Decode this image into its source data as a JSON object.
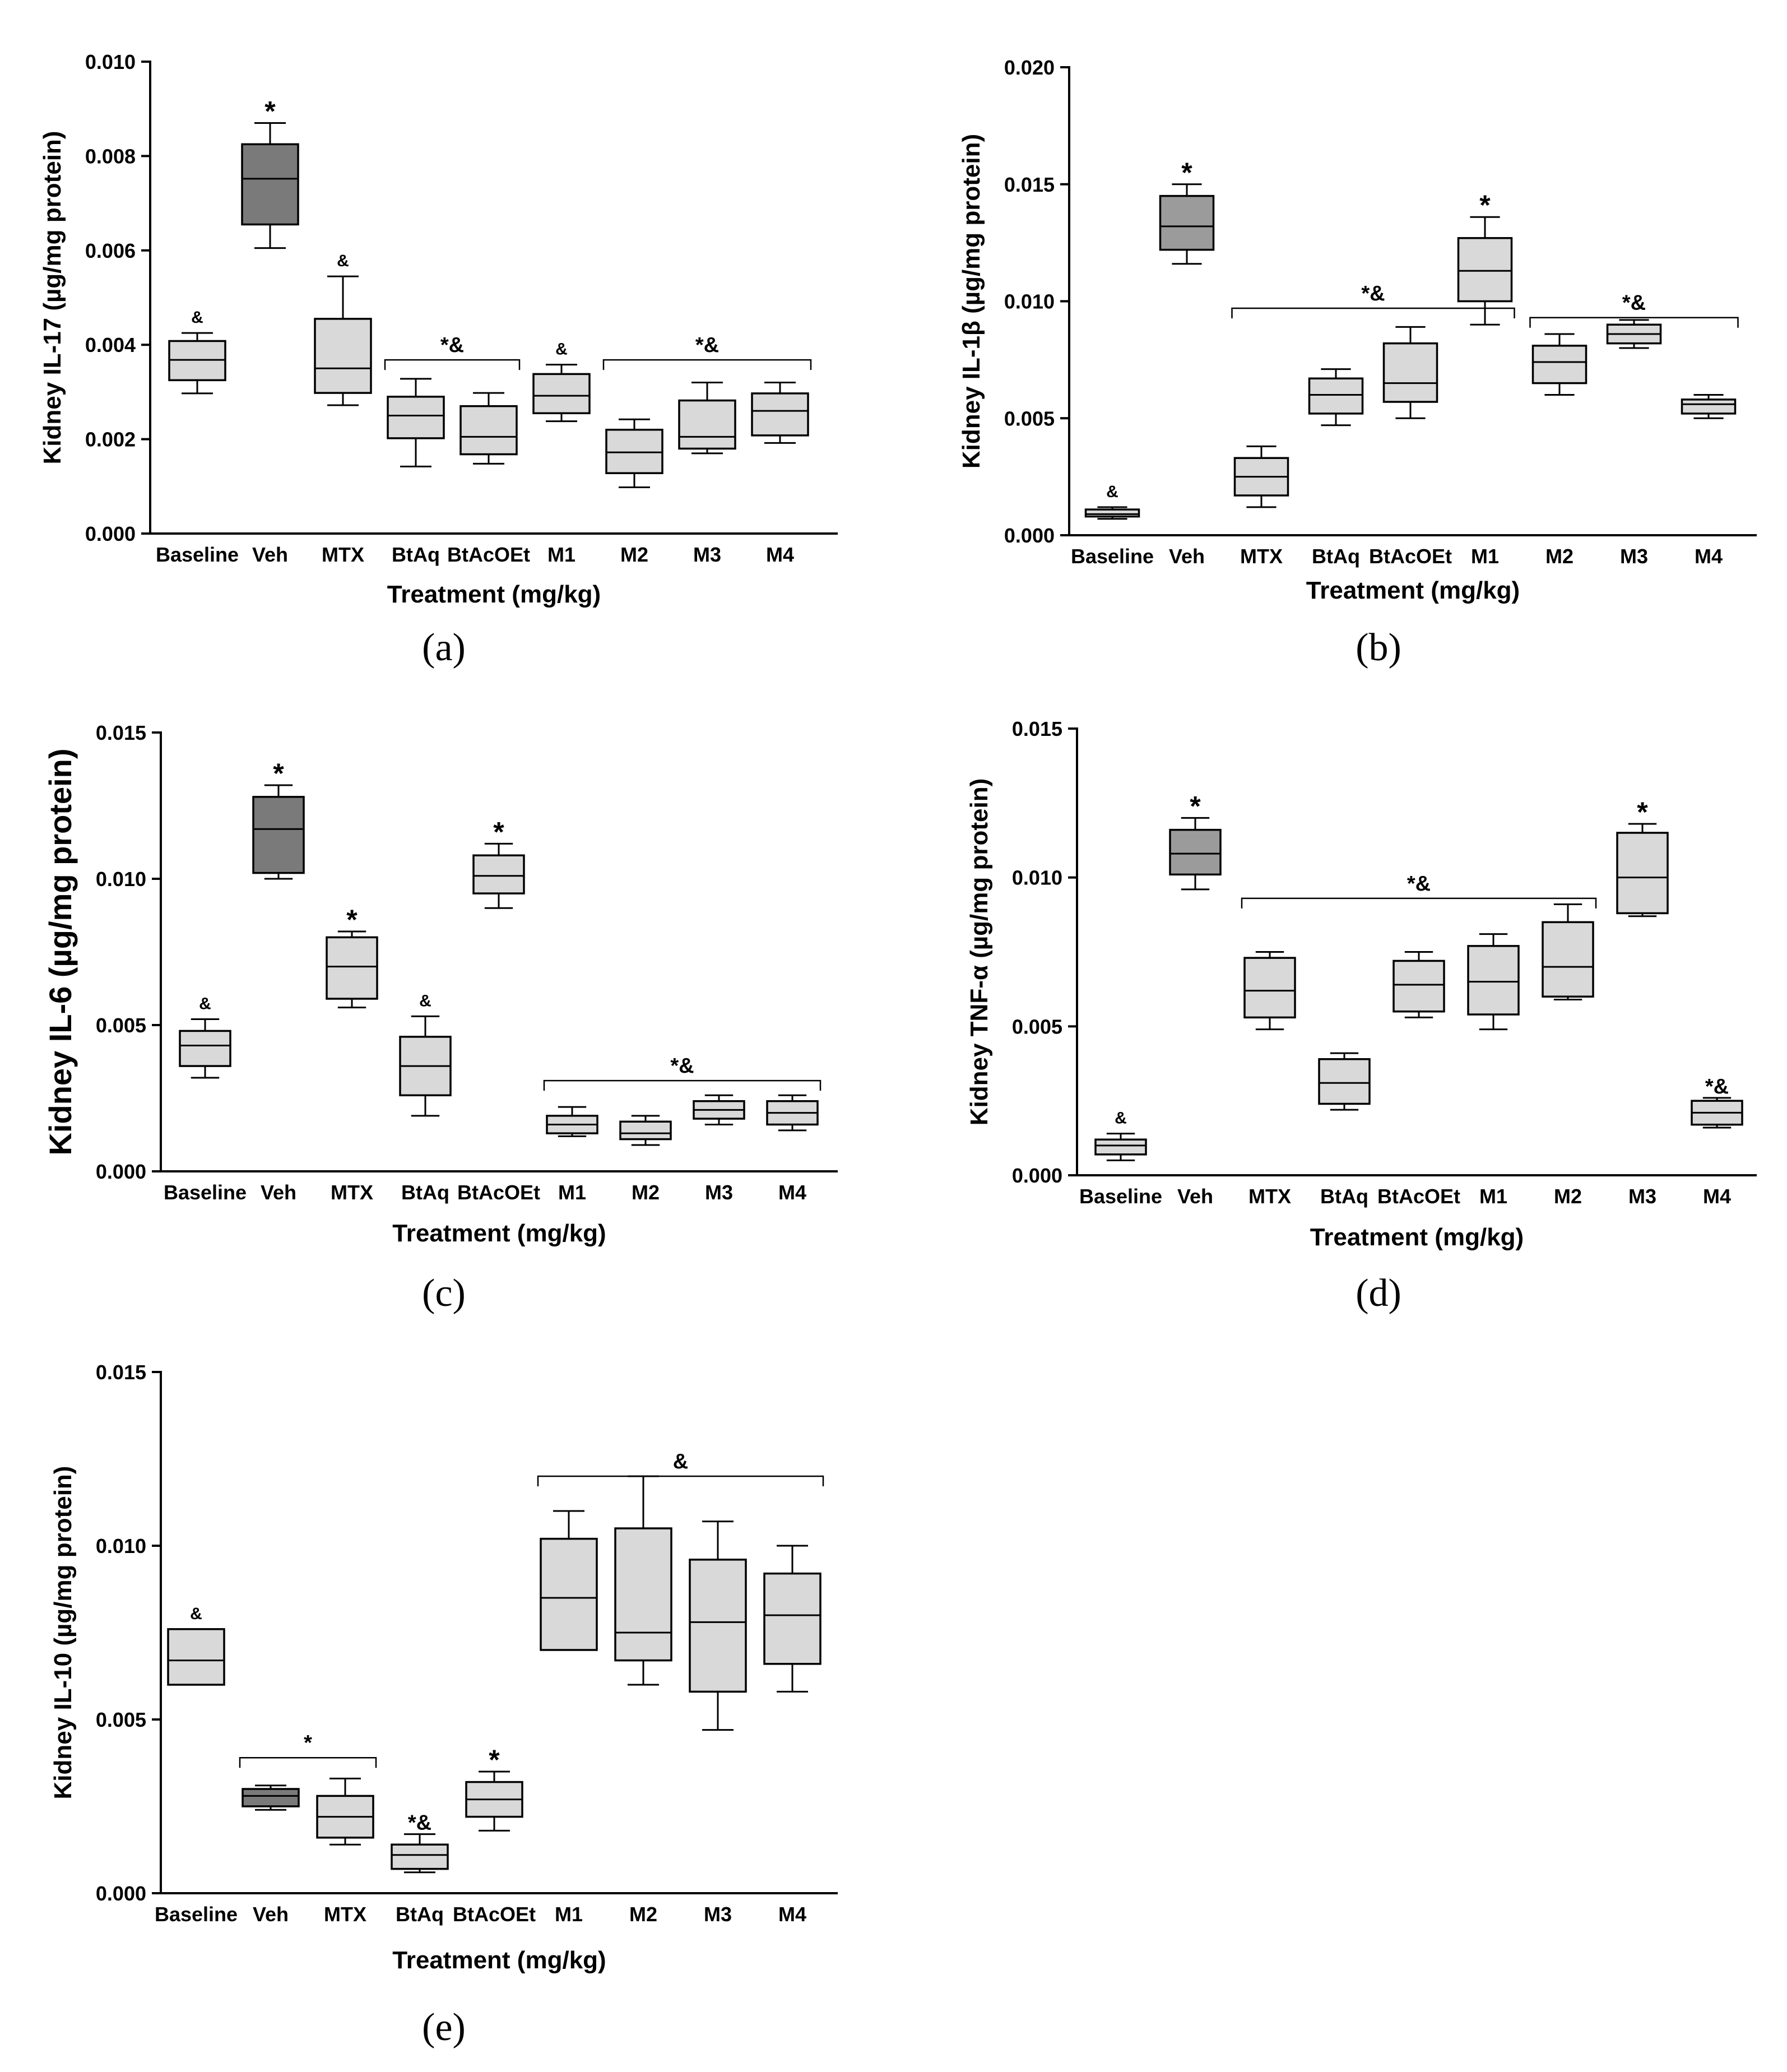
{
  "colors": {
    "dark_box": "#7a7a7a",
    "mid_box": "#9b9b9b",
    "light_box": "#d9d9d9",
    "stroke": "#000000"
  },
  "x_title": "Treatment (mg/kg)",
  "chart_data": [
    {
      "type": "box",
      "panel_label": "(a)",
      "ylabel": "Kidney IL-17 (µg/mg protein)",
      "ylim": [
        0,
        0.01
      ],
      "yticks": [
        "0.000",
        "0.002",
        "0.004",
        "0.006",
        "0.008",
        "0.010"
      ],
      "categories": [
        "Baseline",
        "Veh",
        "MTX",
        "BtAq",
        "BtAcOEt",
        "M1",
        "M2",
        "M3",
        "M4"
      ],
      "boxes": [
        {
          "group": "Baseline",
          "min": 0.00297,
          "q1": 0.00325,
          "median": 0.00368,
          "q3": 0.00408,
          "max": 0.00425,
          "fill": "light_box",
          "marker": "&"
        },
        {
          "group": "Veh",
          "min": 0.00605,
          "q1": 0.00655,
          "median": 0.00752,
          "q3": 0.00825,
          "max": 0.0087,
          "fill": "dark_box",
          "marker": "*"
        },
        {
          "group": "MTX",
          "min": 0.00272,
          "q1": 0.00298,
          "median": 0.0035,
          "q3": 0.00455,
          "max": 0.00545,
          "fill": "light_box",
          "marker": "&"
        },
        {
          "group": "BtAq",
          "min": 0.00142,
          "q1": 0.00202,
          "median": 0.0025,
          "q3": 0.0029,
          "max": 0.00328,
          "fill": "light_box"
        },
        {
          "group": "BtAcOEt",
          "min": 0.00148,
          "q1": 0.00168,
          "median": 0.00205,
          "q3": 0.0027,
          "max": 0.00298,
          "fill": "light_box"
        },
        {
          "group": "M1",
          "min": 0.00238,
          "q1": 0.00255,
          "median": 0.00292,
          "q3": 0.00338,
          "max": 0.00358,
          "fill": "light_box",
          "marker": "&"
        },
        {
          "group": "M2",
          "min": 0.00098,
          "q1": 0.00128,
          "median": 0.00172,
          "q3": 0.0022,
          "max": 0.00242,
          "fill": "light_box"
        },
        {
          "group": "M3",
          "min": 0.0017,
          "q1": 0.0018,
          "median": 0.00205,
          "q3": 0.00282,
          "max": 0.0032,
          "fill": "light_box"
        },
        {
          "group": "M4",
          "min": 0.00192,
          "q1": 0.00208,
          "median": 0.0026,
          "q3": 0.00297,
          "max": 0.0032,
          "fill": "light_box"
        }
      ],
      "brackets": [
        {
          "from": "BtAq",
          "to": "BtAcOEt",
          "y": 0.00368,
          "label": "*&"
        },
        {
          "from": "M2",
          "to": "M4",
          "y": 0.00368,
          "label": "*&"
        }
      ]
    },
    {
      "type": "box",
      "panel_label": "(b)",
      "ylabel": "Kidney IL-1β (µg/mg protein)",
      "ylim": [
        0,
        0.02
      ],
      "yticks": [
        "0.000",
        "0.005",
        "0.010",
        "0.015",
        "0.020"
      ],
      "categories": [
        "Baseline",
        "Veh",
        "MTX",
        "BtAq",
        "BtAcOEt",
        "M1",
        "M2",
        "M3",
        "M4"
      ],
      "boxes": [
        {
          "group": "Baseline",
          "min": 0.0007,
          "q1": 0.0008,
          "median": 0.0009,
          "q3": 0.0011,
          "max": 0.0012,
          "fill": "light_box",
          "marker": "&"
        },
        {
          "group": "Veh",
          "min": 0.0116,
          "q1": 0.0122,
          "median": 0.0132,
          "q3": 0.0145,
          "max": 0.015,
          "fill": "mid_box",
          "marker": "*"
        },
        {
          "group": "MTX",
          "min": 0.0012,
          "q1": 0.0017,
          "median": 0.0025,
          "q3": 0.0033,
          "max": 0.0038,
          "fill": "light_box"
        },
        {
          "group": "BtAq",
          "min": 0.0047,
          "q1": 0.0052,
          "median": 0.006,
          "q3": 0.0067,
          "max": 0.0071,
          "fill": "light_box"
        },
        {
          "group": "BtAcOEt",
          "min": 0.005,
          "q1": 0.0057,
          "median": 0.0065,
          "q3": 0.0082,
          "max": 0.0089,
          "fill": "light_box"
        },
        {
          "group": "M1",
          "min": 0.009,
          "q1": 0.01,
          "median": 0.0113,
          "q3": 0.0127,
          "max": 0.0136,
          "fill": "light_box",
          "marker": "*"
        },
        {
          "group": "M2",
          "min": 0.006,
          "q1": 0.0065,
          "median": 0.0074,
          "q3": 0.0081,
          "max": 0.0086,
          "fill": "light_box"
        },
        {
          "group": "M3",
          "min": 0.008,
          "q1": 0.0082,
          "median": 0.0086,
          "q3": 0.009,
          "max": 0.0092,
          "fill": "light_box"
        },
        {
          "group": "M4",
          "min": 0.005,
          "q1": 0.0052,
          "median": 0.0056,
          "q3": 0.0058,
          "max": 0.006,
          "fill": "light_box"
        }
      ],
      "brackets": [
        {
          "from": "MTX",
          "to": "M1",
          "y": 0.0097,
          "label": "*&"
        },
        {
          "from": "M2",
          "to": "M4",
          "y": 0.0093,
          "label": "*&"
        }
      ]
    },
    {
      "type": "box",
      "panel_label": "(c)",
      "ylabel": "Kidney IL-6 (µg/mg protein)",
      "ylim": [
        0,
        0.015
      ],
      "yticks": [
        "0.000",
        "0.005",
        "0.010",
        "0.015"
      ],
      "categories": [
        "Baseline",
        "Veh",
        "MTX",
        "BtAq",
        "BtAcOEt",
        "M1",
        "M2",
        "M3",
        "M4"
      ],
      "boxes": [
        {
          "group": "Baseline",
          "min": 0.0032,
          "q1": 0.0036,
          "median": 0.0043,
          "q3": 0.0048,
          "max": 0.0052,
          "fill": "light_box",
          "marker": "&"
        },
        {
          "group": "Veh",
          "min": 0.01,
          "q1": 0.0102,
          "median": 0.0117,
          "q3": 0.0128,
          "max": 0.0132,
          "fill": "dark_box",
          "marker": "*"
        },
        {
          "group": "MTX",
          "min": 0.0056,
          "q1": 0.0059,
          "median": 0.007,
          "q3": 0.008,
          "max": 0.0082,
          "fill": "light_box",
          "marker": "*"
        },
        {
          "group": "BtAq",
          "min": 0.0019,
          "q1": 0.0026,
          "median": 0.0036,
          "q3": 0.0046,
          "max": 0.0053,
          "fill": "light_box",
          "marker": "&"
        },
        {
          "group": "BtAcOEt",
          "min": 0.009,
          "q1": 0.0095,
          "median": 0.0101,
          "q3": 0.0108,
          "max": 0.0112,
          "fill": "light_box",
          "marker": "*"
        },
        {
          "group": "M1",
          "min": 0.0012,
          "q1": 0.0013,
          "median": 0.0016,
          "q3": 0.0019,
          "max": 0.0022,
          "fill": "light_box"
        },
        {
          "group": "M2",
          "min": 0.0009,
          "q1": 0.0011,
          "median": 0.0013,
          "q3": 0.0017,
          "max": 0.0019,
          "fill": "light_box"
        },
        {
          "group": "M3",
          "min": 0.0016,
          "q1": 0.0018,
          "median": 0.0021,
          "q3": 0.0024,
          "max": 0.0026,
          "fill": "light_box"
        },
        {
          "group": "M4",
          "min": 0.0014,
          "q1": 0.0016,
          "median": 0.002,
          "q3": 0.0024,
          "max": 0.0026,
          "fill": "light_box"
        }
      ],
      "brackets": [
        {
          "from": "M1",
          "to": "M4",
          "y": 0.0031,
          "label": "*&"
        }
      ]
    },
    {
      "type": "box",
      "panel_label": "(d)",
      "ylabel": "Kidney TNF-α  (µg/mg protein)",
      "ylim": [
        0,
        0.015
      ],
      "yticks": [
        "0.000",
        "0.005",
        "0.010",
        "0.015"
      ],
      "categories": [
        "Baseline",
        "Veh",
        "MTX",
        "BtAq",
        "BtAcOEt",
        "M1",
        "M2",
        "M3",
        "M4"
      ],
      "boxes": [
        {
          "group": "Baseline",
          "min": 0.0005,
          "q1": 0.0007,
          "median": 0.001,
          "q3": 0.0012,
          "max": 0.0014,
          "fill": "light_box",
          "marker": "&"
        },
        {
          "group": "Veh",
          "min": 0.0096,
          "q1": 0.0101,
          "median": 0.0108,
          "q3": 0.0116,
          "max": 0.012,
          "fill": "mid_box",
          "marker": "*"
        },
        {
          "group": "MTX",
          "min": 0.0049,
          "q1": 0.0053,
          "median": 0.0062,
          "q3": 0.0073,
          "max": 0.0075,
          "fill": "light_box"
        },
        {
          "group": "BtAq",
          "min": 0.0022,
          "q1": 0.0024,
          "median": 0.0031,
          "q3": 0.0039,
          "max": 0.0041,
          "fill": "light_box"
        },
        {
          "group": "BtAcOEt",
          "min": 0.0053,
          "q1": 0.0055,
          "median": 0.0064,
          "q3": 0.0072,
          "max": 0.0075,
          "fill": "light_box"
        },
        {
          "group": "M1",
          "min": 0.0049,
          "q1": 0.0054,
          "median": 0.0065,
          "q3": 0.0077,
          "max": 0.0081,
          "fill": "light_box"
        },
        {
          "group": "M2",
          "min": 0.0059,
          "q1": 0.006,
          "median": 0.007,
          "q3": 0.0085,
          "max": 0.0091,
          "fill": "light_box"
        },
        {
          "group": "M3",
          "min": 0.0087,
          "q1": 0.0088,
          "median": 0.01,
          "q3": 0.0115,
          "max": 0.0118,
          "fill": "light_box",
          "marker": "*"
        },
        {
          "group": "M4",
          "min": 0.0016,
          "q1": 0.0017,
          "median": 0.0021,
          "q3": 0.0025,
          "max": 0.0026,
          "fill": "light_box",
          "marker": "*&"
        }
      ],
      "brackets": [
        {
          "from": "MTX",
          "to": "M2",
          "y": 0.0093,
          "label": "*&"
        }
      ]
    },
    {
      "type": "box",
      "panel_label": "(e)",
      "ylabel": "Kidney  IL-10  (µg/mg protein)",
      "ylim": [
        0,
        0.015
      ],
      "yticks": [
        "0.000",
        "0.005",
        "0.010",
        "0.015"
      ],
      "categories": [
        "Baseline",
        "Veh",
        "MTX",
        "BtAq",
        "BtAcOEt",
        "M1",
        "M2",
        "M3",
        "M4"
      ],
      "boxes": [
        {
          "group": "Baseline",
          "min": 0.006,
          "q1": 0.006,
          "median": 0.0067,
          "q3": 0.0076,
          "max": 0.0076,
          "fill": "light_box",
          "marker": "&"
        },
        {
          "group": "Veh",
          "min": 0.0024,
          "q1": 0.0025,
          "median": 0.0028,
          "q3": 0.003,
          "max": 0.0031,
          "fill": "dark_box"
        },
        {
          "group": "MTX",
          "min": 0.0014,
          "q1": 0.0016,
          "median": 0.0022,
          "q3": 0.0028,
          "max": 0.0033,
          "fill": "light_box"
        },
        {
          "group": "BtAq",
          "min": 0.0006,
          "q1": 0.0007,
          "median": 0.0011,
          "q3": 0.0014,
          "max": 0.0017,
          "fill": "light_box",
          "marker": "*&"
        },
        {
          "group": "BtAcOEt",
          "min": 0.0018,
          "q1": 0.0022,
          "median": 0.0027,
          "q3": 0.0032,
          "max": 0.0035,
          "fill": "light_box",
          "marker": "*"
        },
        {
          "group": "M1",
          "min": 0.007,
          "q1": 0.007,
          "median": 0.0085,
          "q3": 0.0102,
          "max": 0.011,
          "fill": "light_box"
        },
        {
          "group": "M2",
          "min": 0.006,
          "q1": 0.0067,
          "median": 0.0075,
          "q3": 0.0105,
          "max": 0.012,
          "fill": "light_box"
        },
        {
          "group": "M3",
          "min": 0.0047,
          "q1": 0.0058,
          "median": 0.0078,
          "q3": 0.0096,
          "max": 0.0107,
          "fill": "light_box"
        },
        {
          "group": "M4",
          "min": 0.0058,
          "q1": 0.0066,
          "median": 0.008,
          "q3": 0.0092,
          "max": 0.01,
          "fill": "light_box"
        }
      ],
      "brackets": [
        {
          "from": "Veh",
          "to": "MTX",
          "y": 0.0039,
          "label": "*"
        },
        {
          "from": "M1",
          "to": "M4",
          "y": 0.012,
          "label": "&"
        }
      ]
    }
  ]
}
